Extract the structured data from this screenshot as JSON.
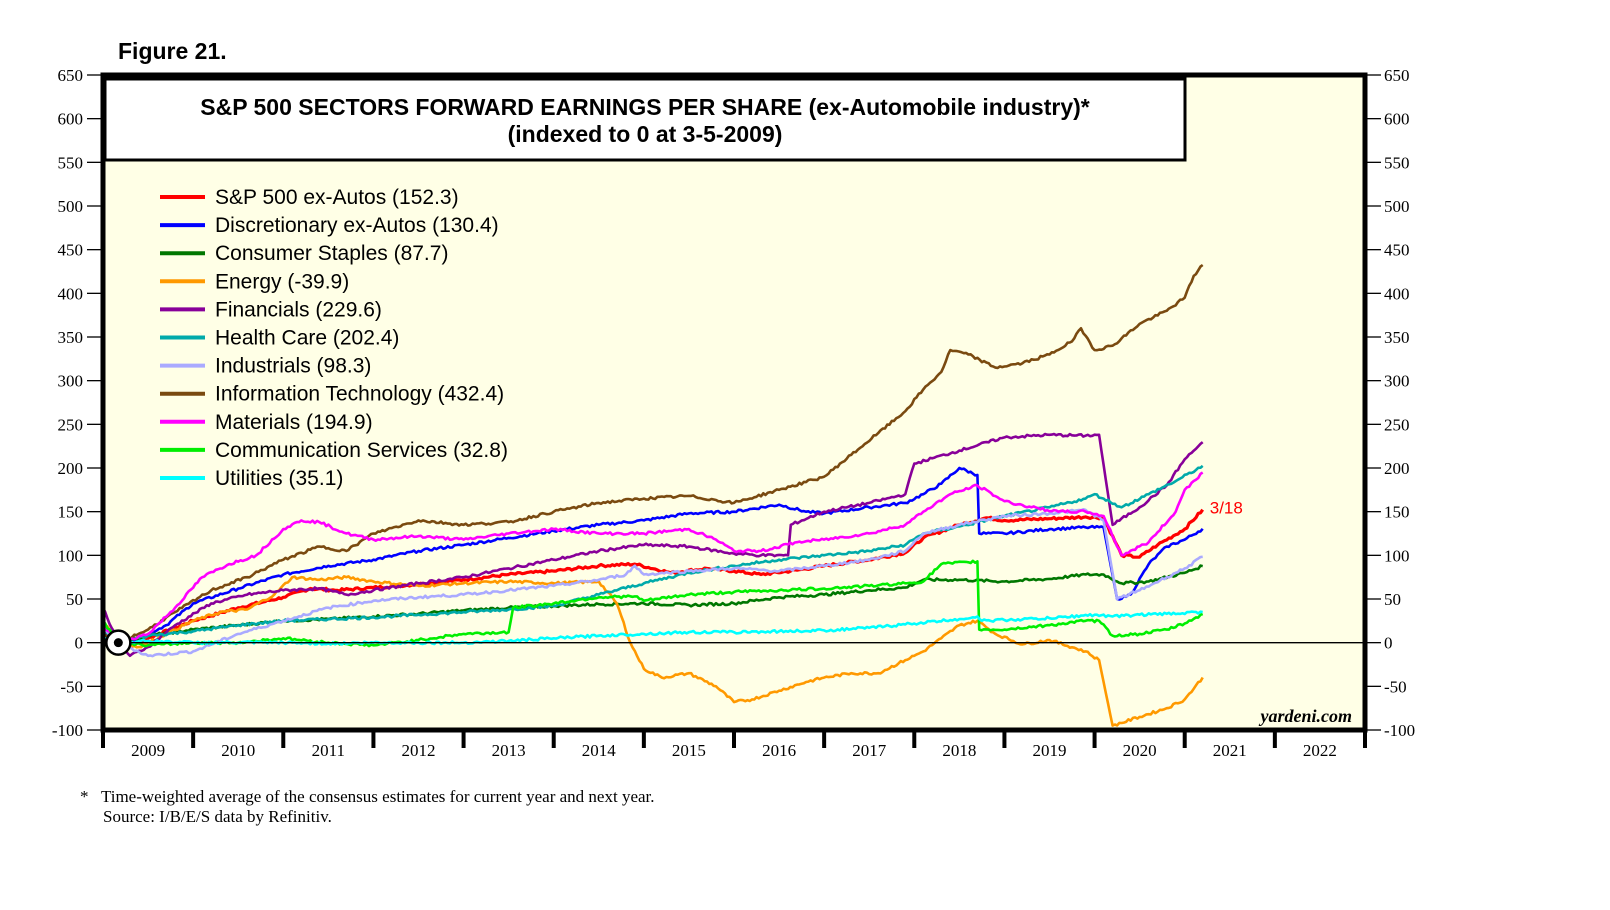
{
  "figure_label": "Figure 21.",
  "footnote": {
    "line1": "*   Time-weighted average of the consensus estimates for current year and next year.",
    "line2": "Source: I/B/E/S data by Refinitiv."
  },
  "watermark": "yardeni.com",
  "chart_data": {
    "type": "line",
    "title": "S&P 500 SECTORS FORWARD EARNINGS PER SHARE (ex-Automobile industry)*",
    "subtitle": "(indexed to 0 at 3-5-2009)",
    "xlabel": "",
    "ylabel": "",
    "ylim": [
      -100,
      650
    ],
    "yticks": [
      650,
      600,
      550,
      500,
      450,
      400,
      350,
      300,
      250,
      200,
      150,
      100,
      50,
      0,
      -50,
      -100
    ],
    "xlim": [
      2009,
      2023
    ],
    "xtick_labels": [
      "2009",
      "2010",
      "2011",
      "2012",
      "2013",
      "2014",
      "2015",
      "2016",
      "2017",
      "2018",
      "2019",
      "2020",
      "2021",
      "2022"
    ],
    "grid": false,
    "legend_position": "top-left",
    "end_label": "3/18",
    "index_marker": {
      "x": 2009.17,
      "y": 0
    },
    "series": [
      {
        "name": "S&P 500 ex-Autos",
        "last": "152.3",
        "color": "#ff0000",
        "x": [
          2009.0,
          2009.1,
          2009.17,
          2009.3,
          2009.5,
          2009.75,
          2010.0,
          2010.5,
          2011.0,
          2011.3,
          2011.6,
          2012.0,
          2012.5,
          2013.0,
          2013.5,
          2014.0,
          2014.5,
          2014.9,
          2015.3,
          2015.7,
          2016.0,
          2016.3,
          2016.7,
          2017.0,
          2017.5,
          2017.9,
          2018.1,
          2018.5,
          2018.8,
          2019.0,
          2019.5,
          2019.9,
          2020.1,
          2020.3,
          2020.5,
          2020.7,
          2021.0,
          2021.2
        ],
        "y": [
          15,
          5,
          0,
          -5,
          5,
          15,
          25,
          40,
          52,
          62,
          60,
          63,
          67,
          72,
          78,
          82,
          88,
          90,
          80,
          85,
          82,
          78,
          83,
          88,
          95,
          103,
          120,
          135,
          143,
          140,
          142,
          144,
          143,
          100,
          98,
          112,
          130,
          152.3
        ]
      },
      {
        "name": "Discretionary ex-Autos",
        "last": "130.4",
        "color": "#0000ff",
        "x": [
          2009.0,
          2009.17,
          2009.4,
          2009.7,
          2010.0,
          2010.5,
          2011.0,
          2011.5,
          2012.0,
          2012.5,
          2013.0,
          2013.5,
          2014.0,
          2014.5,
          2015.0,
          2015.5,
          2016.0,
          2016.5,
          2016.8,
          2017.0,
          2017.5,
          2017.9,
          2018.1,
          2018.3,
          2018.5,
          2018.7,
          2018.72,
          2019.0,
          2019.5,
          2019.9,
          2020.1,
          2020.25,
          2020.4,
          2020.6,
          2020.8,
          2021.0,
          2021.2
        ],
        "y": [
          10,
          0,
          5,
          20,
          45,
          62,
          78,
          88,
          95,
          105,
          112,
          120,
          128,
          135,
          140,
          148,
          150,
          158,
          150,
          148,
          155,
          160,
          170,
          182,
          200,
          192,
          125,
          125,
          130,
          132,
          132,
          50,
          55,
          90,
          110,
          118,
          130.4
        ]
      },
      {
        "name": "Consumer Staples",
        "last": "87.7",
        "color": "#007700",
        "x": [
          2009.0,
          2009.17,
          2009.5,
          2010.0,
          2010.5,
          2011.0,
          2011.5,
          2012.0,
          2012.5,
          2013.0,
          2013.5,
          2014.0,
          2014.5,
          2015.0,
          2015.5,
          2016.0,
          2016.5,
          2017.0,
          2017.5,
          2017.9,
          2018.1,
          2018.5,
          2019.0,
          2019.5,
          2019.9,
          2020.1,
          2020.3,
          2020.6,
          2021.0,
          2021.2
        ],
        "y": [
          12,
          0,
          8,
          15,
          20,
          25,
          27,
          30,
          33,
          37,
          40,
          42,
          44,
          45,
          43,
          45,
          52,
          55,
          60,
          63,
          72,
          72,
          70,
          73,
          78,
          78,
          68,
          70,
          80,
          87.7
        ]
      },
      {
        "name": "Energy",
        "last": "-39.9",
        "color": "#ff9900",
        "x": [
          2009.0,
          2009.17,
          2009.4,
          2009.7,
          2010.0,
          2010.3,
          2010.6,
          2010.9,
          2011.1,
          2011.4,
          2011.7,
          2012.0,
          2012.5,
          2013.0,
          2013.5,
          2014.0,
          2014.5,
          2014.7,
          2014.85,
          2015.0,
          2015.2,
          2015.5,
          2015.8,
          2016.0,
          2016.2,
          2016.5,
          2016.8,
          2017.0,
          2017.3,
          2017.6,
          2017.9,
          2018.1,
          2018.3,
          2018.5,
          2018.7,
          2018.9,
          2019.2,
          2019.5,
          2019.9,
          2020.05,
          2020.2,
          2020.5,
          2020.8,
          2021.0,
          2021.2
        ],
        "y": [
          25,
          0,
          -5,
          10,
          25,
          35,
          38,
          55,
          75,
          72,
          75,
          70,
          65,
          68,
          70,
          68,
          70,
          45,
          0,
          -30,
          -40,
          -35,
          -50,
          -68,
          -65,
          -55,
          -45,
          -40,
          -35,
          -35,
          -20,
          -10,
          5,
          20,
          25,
          10,
          -2,
          3,
          -10,
          -20,
          -95,
          -85,
          -75,
          -65,
          -39.9
        ]
      },
      {
        "name": "Financials",
        "last": "229.6",
        "color": "#880099",
        "x": [
          2009.0,
          2009.17,
          2009.3,
          2009.5,
          2009.8,
          2010.2,
          2010.6,
          2011.0,
          2011.4,
          2011.7,
          2012.0,
          2012.5,
          2013.0,
          2013.5,
          2014.0,
          2014.5,
          2015.0,
          2015.5,
          2016.0,
          2016.3,
          2016.6,
          2016.63,
          2017.0,
          2017.5,
          2017.9,
          2018.0,
          2018.5,
          2019.0,
          2019.5,
          2019.9,
          2020.05,
          2020.2,
          2020.5,
          2020.8,
          2021.0,
          2021.2
        ],
        "y": [
          40,
          0,
          -15,
          -5,
          20,
          45,
          55,
          60,
          62,
          55,
          60,
          68,
          75,
          85,
          95,
          105,
          112,
          110,
          102,
          100,
          100,
          135,
          150,
          160,
          170,
          205,
          220,
          235,
          238,
          237,
          238,
          135,
          155,
          180,
          210,
          229.6
        ]
      },
      {
        "name": "Health Care",
        "last": "202.4",
        "color": "#00aaaa",
        "x": [
          2009.0,
          2009.17,
          2009.5,
          2010.0,
          2010.5,
          2011.0,
          2011.5,
          2012.0,
          2012.5,
          2013.0,
          2013.5,
          2014.0,
          2014.5,
          2015.0,
          2015.5,
          2016.0,
          2016.5,
          2017.0,
          2017.5,
          2017.9,
          2018.1,
          2018.5,
          2019.0,
          2019.5,
          2019.9,
          2020.0,
          2020.1,
          2020.3,
          2020.6,
          2020.9,
          2021.2
        ],
        "y": [
          10,
          0,
          8,
          13,
          20,
          25,
          27,
          29,
          32,
          35,
          38,
          42,
          55,
          68,
          80,
          88,
          95,
          100,
          105,
          112,
          125,
          133,
          145,
          155,
          165,
          170,
          165,
          155,
          170,
          185,
          202.4
        ]
      },
      {
        "name": "Industrials",
        "last": "98.3",
        "color": "#aaaaff",
        "x": [
          2009.0,
          2009.17,
          2009.5,
          2010.0,
          2010.5,
          2011.0,
          2011.5,
          2012.0,
          2012.5,
          2013.0,
          2013.5,
          2014.0,
          2014.5,
          2014.8,
          2014.9,
          2015.0,
          2015.5,
          2016.0,
          2016.5,
          2017.0,
          2017.5,
          2017.9,
          2018.1,
          2018.5,
          2019.0,
          2019.5,
          2019.9,
          2020.1,
          2020.25,
          2020.5,
          2020.8,
          2021.0,
          2021.2
        ],
        "y": [
          15,
          0,
          -15,
          -10,
          10,
          25,
          40,
          48,
          52,
          55,
          60,
          65,
          72,
          78,
          88,
          78,
          82,
          85,
          82,
          88,
          95,
          105,
          125,
          135,
          145,
          148,
          152,
          140,
          50,
          60,
          75,
          85,
          98.3
        ]
      },
      {
        "name": "Information Technology",
        "last": "432.4",
        "color": "#7a4a10",
        "x": [
          2009.0,
          2009.17,
          2009.5,
          2009.8,
          2010.2,
          2010.6,
          2011.0,
          2011.4,
          2011.7,
          2012.0,
          2012.5,
          2013.0,
          2013.5,
          2014.0,
          2014.5,
          2015.0,
          2015.5,
          2016.0,
          2016.5,
          2017.0,
          2017.3,
          2017.6,
          2017.9,
          2018.1,
          2018.3,
          2018.4,
          2018.6,
          2018.9,
          2019.2,
          2019.5,
          2019.75,
          2019.85,
          2020.0,
          2020.2,
          2020.5,
          2020.8,
          2021.0,
          2021.1,
          2021.2
        ],
        "y": [
          10,
          0,
          15,
          35,
          60,
          75,
          95,
          110,
          105,
          125,
          140,
          135,
          138,
          150,
          160,
          165,
          168,
          160,
          175,
          190,
          215,
          240,
          265,
          290,
          310,
          335,
          330,
          315,
          320,
          330,
          345,
          360,
          335,
          340,
          365,
          380,
          395,
          420,
          432.4
        ]
      },
      {
        "name": "Materials",
        "last": "194.9",
        "color": "#ff00ff",
        "x": [
          2009.0,
          2009.17,
          2009.5,
          2009.8,
          2010.1,
          2010.4,
          2010.7,
          2011.0,
          2011.2,
          2011.4,
          2011.7,
          2012.0,
          2012.5,
          2013.0,
          2013.5,
          2014.0,
          2014.5,
          2015.0,
          2015.5,
          2015.8,
          2016.0,
          2016.3,
          2016.7,
          2017.0,
          2017.5,
          2017.9,
          2018.1,
          2018.4,
          2018.7,
          2019.0,
          2019.3,
          2019.6,
          2019.9,
          2020.1,
          2020.3,
          2020.6,
          2020.9,
          2021.0,
          2021.2
        ],
        "y": [
          20,
          0,
          10,
          40,
          75,
          90,
          100,
          130,
          140,
          138,
          125,
          118,
          122,
          118,
          125,
          130,
          125,
          125,
          130,
          118,
          105,
          105,
          115,
          118,
          125,
          135,
          150,
          170,
          180,
          162,
          155,
          150,
          150,
          145,
          100,
          115,
          150,
          175,
          194.9
        ]
      },
      {
        "name": "Communication Services",
        "last": "32.8",
        "color": "#00ee00",
        "x": [
          2009.0,
          2009.17,
          2009.5,
          2010.0,
          2010.5,
          2011.0,
          2011.5,
          2012.0,
          2012.5,
          2013.0,
          2013.5,
          2013.55,
          2014.0,
          2014.5,
          2014.9,
          2015.0,
          2015.5,
          2016.0,
          2016.5,
          2017.0,
          2017.5,
          2017.9,
          2018.1,
          2018.3,
          2018.6,
          2018.7,
          2018.72,
          2019.0,
          2019.5,
          2019.9,
          2020.05,
          2020.2,
          2020.5,
          2020.8,
          2021.0,
          2021.2
        ],
        "y": [
          25,
          0,
          -3,
          0,
          0,
          5,
          0,
          -3,
          3,
          10,
          12,
          40,
          45,
          52,
          53,
          48,
          55,
          58,
          60,
          62,
          65,
          68,
          70,
          90,
          92,
          93,
          15,
          15,
          20,
          25,
          25,
          8,
          10,
          15,
          22,
          32.8
        ]
      },
      {
        "name": "Utilities",
        "last": "35.1",
        "color": "#00ffff",
        "x": [
          2009.0,
          2009.17,
          2009.5,
          2010.0,
          2010.5,
          2011.0,
          2011.5,
          2012.0,
          2012.5,
          2013.0,
          2013.5,
          2014.0,
          2014.5,
          2015.0,
          2015.5,
          2016.0,
          2016.5,
          2017.0,
          2017.5,
          2018.0,
          2018.5,
          2018.7,
          2018.75,
          2019.0,
          2019.5,
          2020.0,
          2020.2,
          2020.5,
          2020.8,
          2021.2
        ],
        "y": [
          5,
          0,
          2,
          0,
          0,
          0,
          -1,
          0,
          0,
          0,
          2,
          5,
          8,
          10,
          12,
          12,
          13,
          14,
          17,
          22,
          27,
          30,
          25,
          26,
          28,
          32,
          30,
          32,
          33,
          35.1
        ]
      }
    ]
  }
}
